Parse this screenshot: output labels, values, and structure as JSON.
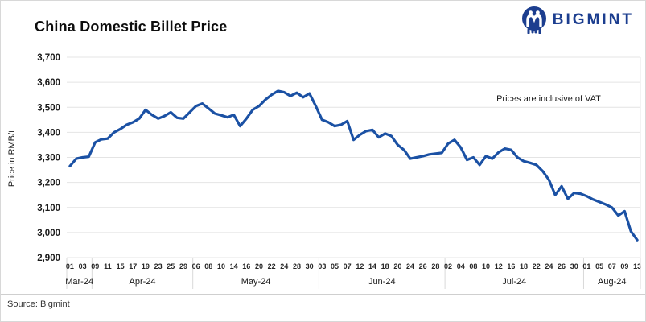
{
  "header": {
    "title": "China Domestic Billet Price",
    "logo_text": "BIGMINT",
    "logo_color": "#1c3e8f"
  },
  "chart_data": {
    "type": "line",
    "title": "China Domestic Billet Price",
    "ylabel": "Price in RMB/t",
    "annotation": "Prices are inclusive of VAT",
    "source": "Source: Bigmint",
    "legend": "none",
    "grid": "horizontal",
    "ylim": [
      2900,
      3700
    ],
    "ytick_step": 100,
    "yticks": [
      "3,700",
      "3,600",
      "3,500",
      "3,400",
      "3,300",
      "3,200",
      "3,100",
      "3,000",
      "2,900"
    ],
    "line_color": "#1b51a4",
    "months": [
      {
        "label": "Mar-24",
        "days": [
          "01",
          "03"
        ]
      },
      {
        "label": "Apr-24",
        "days": [
          "09",
          "11",
          "15",
          "17",
          "19",
          "23",
          "25",
          "29"
        ]
      },
      {
        "label": "May-24",
        "days": [
          "06",
          "08",
          "10",
          "14",
          "16",
          "20",
          "22",
          "24",
          "28",
          "30"
        ]
      },
      {
        "label": "Jun-24",
        "days": [
          "03",
          "05",
          "07",
          "12",
          "14",
          "18",
          "20",
          "24",
          "26",
          "28"
        ]
      },
      {
        "label": "Jul-24",
        "days": [
          "02",
          "04",
          "08",
          "10",
          "12",
          "16",
          "18",
          "22",
          "24",
          "26",
          "30"
        ]
      },
      {
        "label": "Aug-24",
        "days": [
          "01",
          "05",
          "07",
          "09",
          "13"
        ]
      }
    ],
    "values": [
      3265,
      3295,
      3300,
      3303,
      3360,
      3372,
      3375,
      3400,
      3413,
      3430,
      3440,
      3455,
      3490,
      3470,
      3455,
      3465,
      3480,
      3458,
      3455,
      3480,
      3505,
      3515,
      3495,
      3475,
      3468,
      3460,
      3470,
      3425,
      3455,
      3490,
      3505,
      3530,
      3550,
      3565,
      3560,
      3545,
      3558,
      3540,
      3555,
      3505,
      3450,
      3440,
      3425,
      3430,
      3445,
      3370,
      3390,
      3405,
      3410,
      3380,
      3395,
      3385,
      3350,
      3330,
      3295,
      3300,
      3305,
      3312,
      3315,
      3318,
      3355,
      3370,
      3340,
      3290,
      3300,
      3270,
      3305,
      3295,
      3320,
      3335,
      3330,
      3300,
      3285,
      3278,
      3270,
      3245,
      3210,
      3150,
      3185,
      3135,
      3158,
      3155,
      3145,
      3132,
      3122,
      3112,
      3100,
      3068,
      3085,
      3005,
      2970
    ]
  }
}
